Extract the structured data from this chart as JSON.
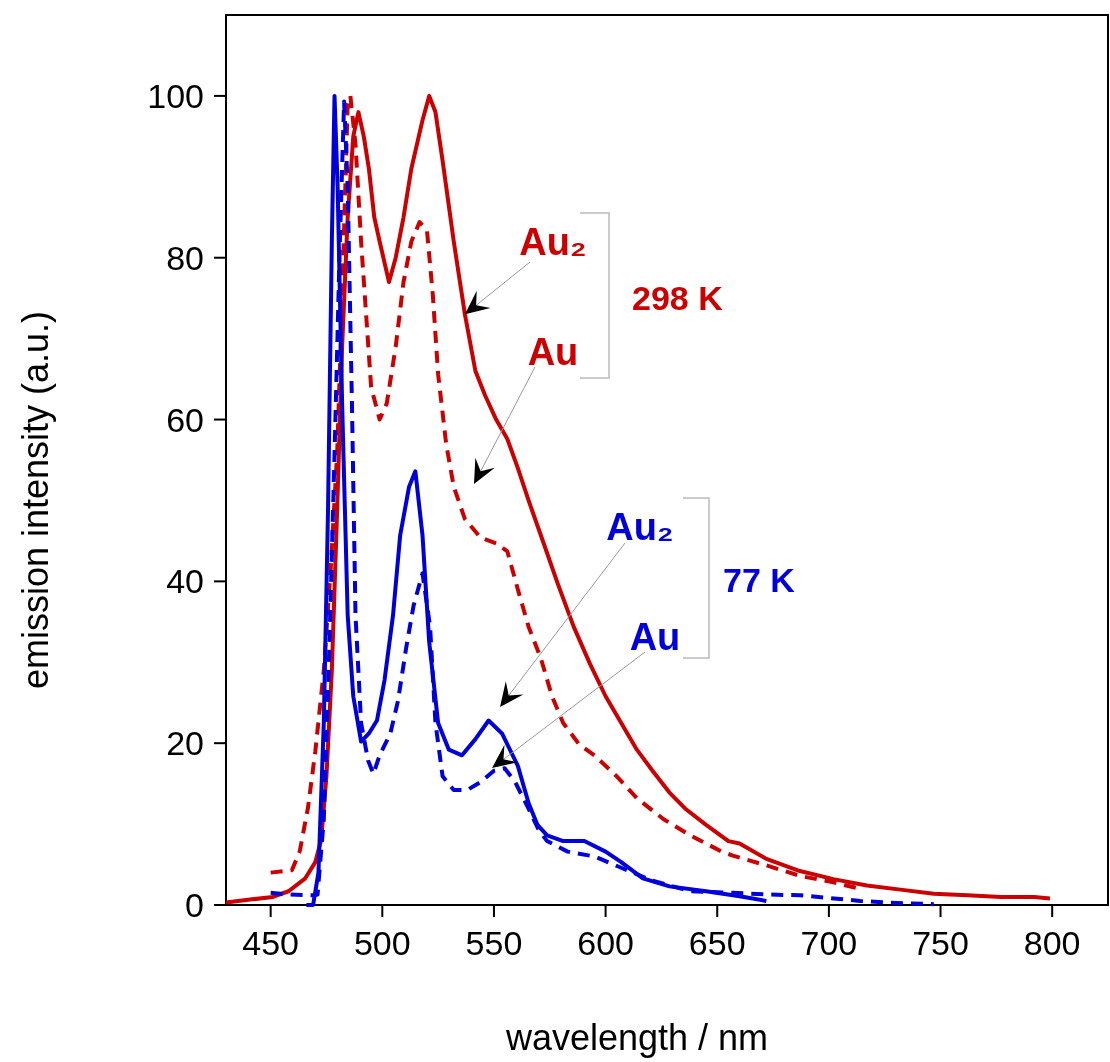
{
  "chart_data": {
    "type": "line",
    "xlabel": "wavelength / nm",
    "ylabel": "emission intensity (a.u.)",
    "xlim": [
      430,
      825
    ],
    "ylim": [
      0,
      110
    ],
    "xticks": [
      450,
      500,
      550,
      600,
      650,
      700,
      750,
      800
    ],
    "yticks": [
      0,
      20,
      40,
      60,
      80,
      100
    ],
    "grid": false,
    "annotations": [
      "298 K",
      "77 K",
      {
        "text": "Au₂",
        "x": 537,
        "y": 73
      },
      "Au",
      "Au₂",
      "Au"
    ],
    "series": [
      {
        "color": "#cc0000",
        "line_style": "solid",
        "x": [
          430,
          441.7,
          451,
          458,
          465.5,
          470,
          472.6,
          475,
          477.4,
          479.8,
          482,
          484.5,
          487,
          489.3,
          491.7,
          494,
          496.4,
          498.8,
          503,
          506,
          509.5,
          513,
          518,
          521,
          523.8,
          527,
          532,
          537,
          541.7,
          546,
          551,
          556,
          560.7,
          565.5,
          571,
          578.6,
          585.7,
          593,
          600,
          607,
          614,
          621,
          628.6,
          635.7,
          645,
          655,
          660,
          672,
          687,
          702,
          717,
          732,
          747,
          762,
          777,
          792,
          799
        ],
        "values": [
          0.3,
          0.7,
          1,
          1.7,
          3.3,
          5.3,
          8,
          16,
          29,
          49,
          69,
          85,
          95,
          98,
          95,
          91,
          85,
          82,
          77,
          80,
          85,
          91,
          97,
          100,
          98,
          92,
          82,
          73,
          66,
          63,
          60,
          57.6,
          54,
          50,
          45.7,
          39.7,
          34.4,
          29.8,
          25.8,
          22.5,
          19.2,
          16.6,
          13.9,
          11.9,
          9.9,
          7.9,
          7.6,
          5.7,
          4.2,
          3.2,
          2.4,
          1.9,
          1.4,
          1.2,
          1,
          1,
          0.8
        ]
      },
      {
        "color": "#cc0000",
        "line_style": "dashed",
        "x": [
          450,
          459.5,
          463,
          466.7,
          470,
          473.8,
          477,
          479.8,
          482,
          484.5,
          485.7,
          488,
          490.5,
          493,
          495,
          498.8,
          502,
          506,
          509.5,
          513,
          516.7,
          520,
          522.6,
          525,
          528.6,
          532,
          537,
          544,
          551,
          556,
          560.7,
          565.5,
          571,
          576,
          581,
          588,
          595,
          605,
          614,
          626,
          638,
          652,
          657,
          672,
          687,
          702,
          714
        ],
        "values": [
          4,
          4.3,
          6.6,
          12,
          19,
          29,
          42,
          56,
          75,
          99,
          100,
          94,
          82,
          72,
          64,
          60,
          62,
          69,
          77,
          82,
          84.4,
          83.4,
          75.5,
          65.6,
          57,
          51.7,
          47.7,
          45.4,
          44.7,
          43.7,
          39,
          34.4,
          30.5,
          25.8,
          22.5,
          19.9,
          18.5,
          15.9,
          13.2,
          10.6,
          8.6,
          6.6,
          6.1,
          4.9,
          3.6,
          2.8,
          2
        ]
      },
      {
        "color": "#0000dd",
        "line_style": "solid",
        "x": [
          466,
          469,
          471.4,
          473.8,
          475.7,
          477.4,
          478.6,
          480,
          482,
          484.5,
          487,
          490.5,
          494,
          497.6,
          501,
          504.8,
          508,
          512,
          514.8,
          518,
          521,
          525,
          529.8,
          535.7,
          541.7,
          547.6,
          553.6,
          560.7,
          565.5,
          569.5,
          573.8,
          581,
          590.5,
          600,
          607,
          616.7,
          628.6,
          645,
          657,
          662,
          672
        ],
        "values": [
          0,
          0,
          4,
          22.5,
          49,
          82,
          100,
          88.7,
          62,
          35.8,
          25.8,
          20.2,
          21.2,
          22.8,
          27.8,
          35.8,
          45.7,
          51.7,
          53.6,
          45.7,
          32.5,
          22.5,
          19.2,
          18.5,
          20.5,
          22.8,
          21.2,
          17.2,
          12.6,
          9.9,
          8.6,
          7.9,
          7.9,
          6.6,
          5.3,
          3.3,
          2.3,
          1.7,
          1.2,
          1,
          0.5
        ]
      },
      {
        "color": "#0000dd",
        "line_style": "dashed",
        "x": [
          450,
          458,
          469,
          471,
          473.8,
          476,
          478.6,
          481,
          482.9,
          484.5,
          486.4,
          488,
          490.5,
          493.6,
          496,
          498.8,
          503.6,
          507,
          510.7,
          514,
          518,
          521.4,
          523.8,
          527,
          532,
          538,
          544,
          550,
          554.8,
          559.5,
          565.5,
          570,
          573.8,
          583,
          595,
          607,
          621,
          638,
          657,
          672,
          687,
          699,
          714,
          726,
          747
        ],
        "values": [
          1.5,
          1.3,
          1.2,
          1.3,
          10.6,
          29,
          55.6,
          82,
          99.3,
          88.7,
          62,
          35.8,
          22.5,
          17.9,
          16.2,
          18.5,
          21.2,
          25.2,
          31.8,
          37,
          41,
          34.4,
          22.5,
          15.9,
          14.2,
          14.2,
          15.2,
          16.6,
          16.9,
          15.2,
          11.9,
          9.3,
          7.9,
          6.6,
          6,
          4.6,
          3,
          1.7,
          1.5,
          1.3,
          1.2,
          0.9,
          0.5,
          0.3,
          0.1
        ]
      }
    ]
  }
}
